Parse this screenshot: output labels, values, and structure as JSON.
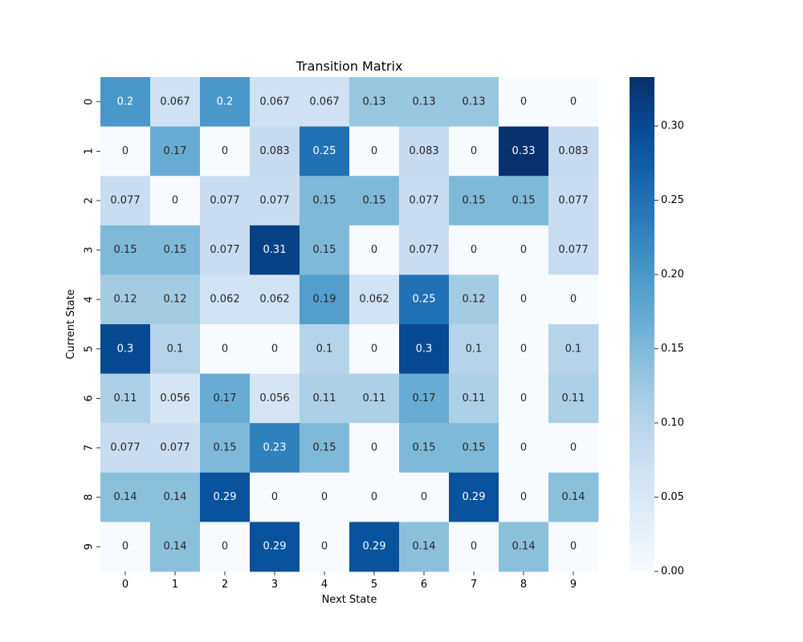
{
  "chart_data": {
    "type": "heatmap",
    "title": "Transition Matrix",
    "xlabel": "Next State",
    "ylabel": "Current State",
    "x_categories": [
      "0",
      "1",
      "2",
      "3",
      "4",
      "5",
      "6",
      "7",
      "8",
      "9"
    ],
    "y_categories": [
      "0",
      "1",
      "2",
      "3",
      "4",
      "5",
      "6",
      "7",
      "8",
      "9"
    ],
    "colormap": "Blues",
    "color_range": [
      0,
      0.333
    ],
    "colorbar_ticks": [
      "0.00",
      "0.05",
      "0.10",
      "0.15",
      "0.20",
      "0.25",
      "0.30"
    ],
    "values": [
      [
        0.2,
        0.067,
        0.2,
        0.067,
        0.067,
        0.13,
        0.13,
        0.13,
        0,
        0
      ],
      [
        0,
        0.17,
        0,
        0.083,
        0.25,
        0,
        0.083,
        0,
        0.33,
        0.083
      ],
      [
        0.077,
        0,
        0.077,
        0.077,
        0.15,
        0.15,
        0.077,
        0.15,
        0.15,
        0.077
      ],
      [
        0.15,
        0.15,
        0.077,
        0.31,
        0.15,
        0,
        0.077,
        0,
        0,
        0.077
      ],
      [
        0.12,
        0.12,
        0.062,
        0.062,
        0.19,
        0.062,
        0.25,
        0.12,
        0,
        0
      ],
      [
        0.3,
        0.1,
        0,
        0,
        0.1,
        0,
        0.3,
        0.1,
        0,
        0.1
      ],
      [
        0.11,
        0.056,
        0.17,
        0.056,
        0.11,
        0.11,
        0.17,
        0.11,
        0,
        0.11
      ],
      [
        0.077,
        0.077,
        0.15,
        0.23,
        0.15,
        0,
        0.15,
        0.15,
        0,
        0
      ],
      [
        0.14,
        0.14,
        0.29,
        0,
        0,
        0,
        0,
        0.29,
        0,
        0.14
      ],
      [
        0,
        0.14,
        0,
        0.29,
        0,
        0.29,
        0.14,
        0,
        0.14,
        0
      ]
    ],
    "grid": false,
    "legend": "colorbar-right"
  }
}
